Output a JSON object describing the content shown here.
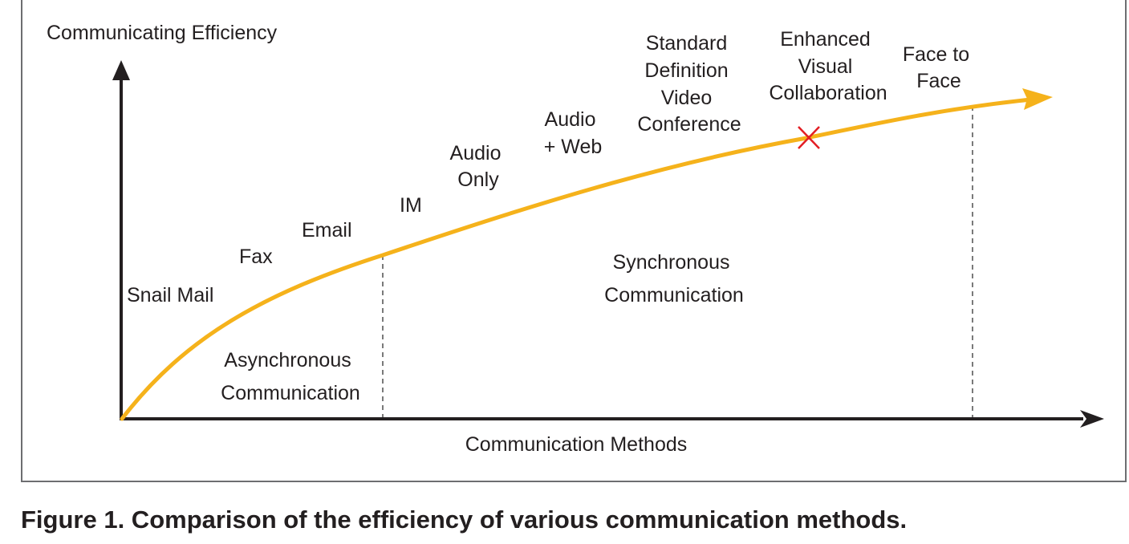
{
  "figure": {
    "y_axis_label": "Communicating Efficiency",
    "x_axis_label": "Communication Methods",
    "methods": {
      "snail_mail": "Snail Mail",
      "fax": "Fax",
      "email": "Email",
      "im": "IM",
      "audio_only": [
        "Audio",
        "Only"
      ],
      "audio_web": [
        "Audio",
        "+ Web"
      ],
      "sd_video": [
        "Standard",
        "Definition",
        "Video",
        "Conference"
      ],
      "enhanced_visual": [
        "Enhanced",
        "Visual",
        "Collaboration"
      ],
      "face_to_face": [
        "Face to",
        "Face"
      ]
    },
    "regions": {
      "asynchronous": [
        "Asynchronous",
        "Communication"
      ],
      "synchronous": [
        "Synchronous",
        "Communication"
      ]
    },
    "colors": {
      "curve": "#f5b21b",
      "axes": "#231f20",
      "marker": "#e31e24",
      "divider": "#7a7a7a",
      "frame": "#6d6e71"
    },
    "marker_symbol": "x-mark"
  },
  "caption": "Figure 1. Comparison of the efficiency of various communication methods."
}
